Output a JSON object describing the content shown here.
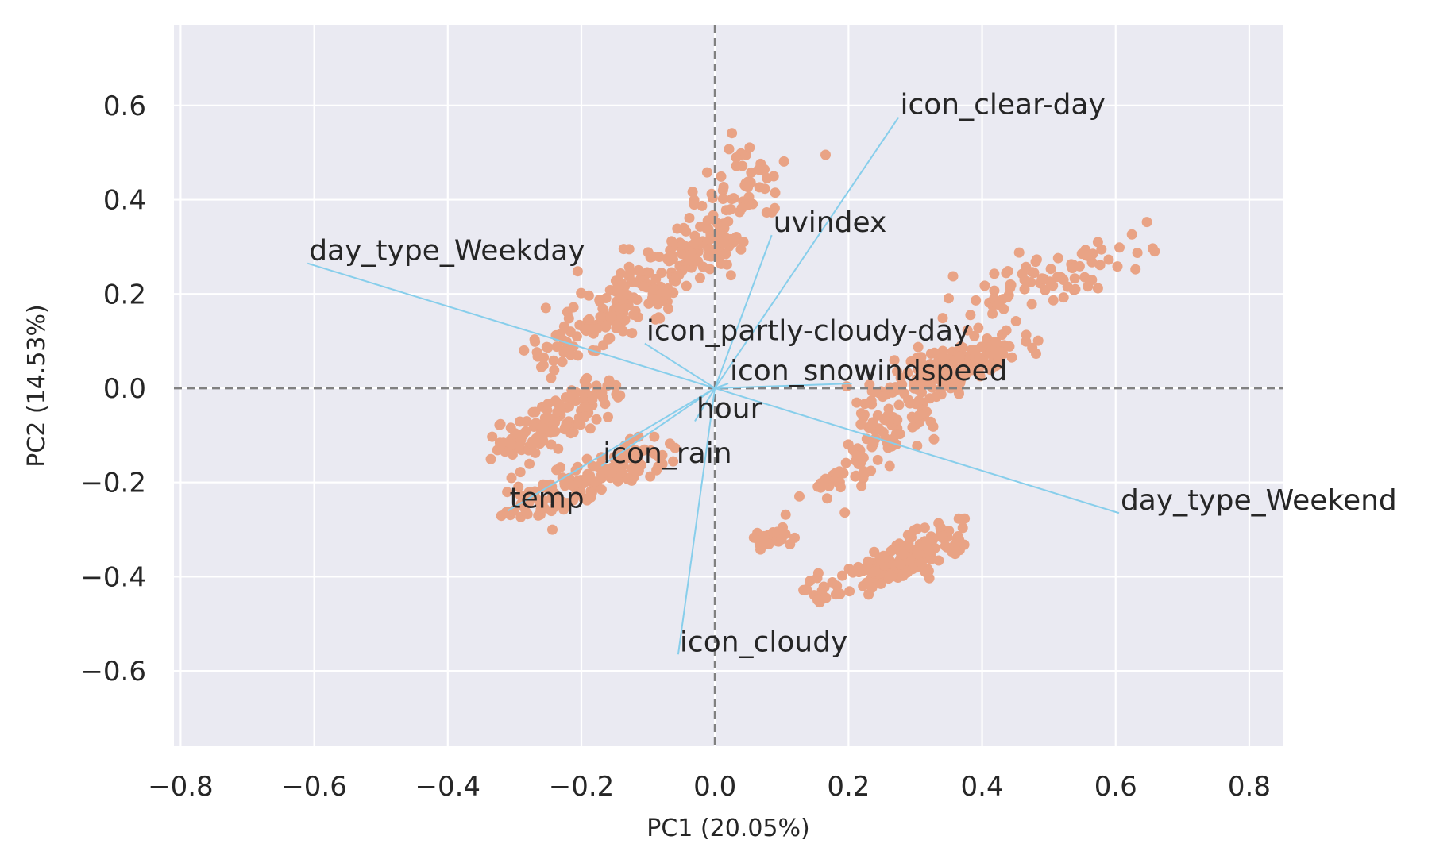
{
  "chart_data": {
    "type": "scatter",
    "title": "",
    "xlabel": "PC1 (20.05%)",
    "ylabel": "PC2 (14.53%)",
    "xlim": [
      -0.81,
      0.85
    ],
    "ylim": [
      -0.76,
      0.77
    ],
    "xticks": [
      -0.8,
      -0.6,
      -0.4,
      -0.2,
      0.0,
      0.2,
      0.4,
      0.6,
      0.8
    ],
    "yticks": [
      -0.6,
      -0.4,
      -0.2,
      0.0,
      0.2,
      0.4,
      0.6
    ],
    "xtick_labels": [
      "−0.8",
      "−0.6",
      "−0.4",
      "−0.2",
      "0.0",
      "0.2",
      "0.4",
      "0.6",
      "0.8"
    ],
    "ytick_labels": [
      "−0.6",
      "−0.4",
      "−0.2",
      "0.0",
      "0.2",
      "0.4",
      "0.6"
    ],
    "grid": true,
    "reference_lines": {
      "x": 0.0,
      "y": 0.0,
      "style": "dashed",
      "color": "#808080"
    },
    "colors": {
      "points": "#E9A385",
      "vectors": "#87CEEB",
      "background": "#EAEAF2",
      "grid": "#FFFFFF"
    },
    "point_clusters": [
      {
        "from": [
          -0.32,
          -0.14
        ],
        "to": [
          -0.16,
          -0.01
        ],
        "count": 130,
        "spread": 0.022
      },
      {
        "from": [
          -0.3,
          -0.27
        ],
        "to": [
          -0.09,
          -0.13
        ],
        "count": 150,
        "spread": 0.022
      },
      {
        "from": [
          -0.27,
          0.05
        ],
        "to": [
          -0.08,
          0.2
        ],
        "count": 80,
        "spread": 0.022
      },
      {
        "from": [
          -0.18,
          0.16
        ],
        "to": [
          0.02,
          0.33
        ],
        "count": 140,
        "spread": 0.025
      },
      {
        "from": [
          -0.03,
          0.3
        ],
        "to": [
          0.08,
          0.5
        ],
        "count": 80,
        "spread": 0.03
      },
      {
        "from": [
          0.22,
          -0.05
        ],
        "to": [
          0.38,
          0.05
        ],
        "count": 90,
        "spread": 0.025
      },
      {
        "from": [
          0.33,
          0.02
        ],
        "to": [
          0.45,
          0.1
        ],
        "count": 90,
        "spread": 0.022
      },
      {
        "from": [
          0.38,
          0.16
        ],
        "to": [
          0.62,
          0.3
        ],
        "count": 80,
        "spread": 0.03
      },
      {
        "from": [
          0.16,
          -0.22
        ],
        "to": [
          0.3,
          -0.06
        ],
        "count": 80,
        "spread": 0.022
      },
      {
        "from": [
          0.23,
          -0.4
        ],
        "to": [
          0.36,
          -0.31
        ],
        "count": 130,
        "spread": 0.02
      },
      {
        "from": [
          0.07,
          -0.33
        ],
        "to": [
          0.12,
          -0.3
        ],
        "count": 25,
        "spread": 0.015
      },
      {
        "from": [
          0.14,
          -0.44
        ],
        "to": [
          0.24,
          -0.38
        ],
        "count": 30,
        "spread": 0.015
      }
    ],
    "vectors": [
      {
        "name": "day_type_Weekday",
        "x": -0.61,
        "y": 0.265
      },
      {
        "name": "day_type_Weekend",
        "x": 0.605,
        "y": -0.265
      },
      {
        "name": "icon_clear-day",
        "x": 0.275,
        "y": 0.575
      },
      {
        "name": "uvindex",
        "x": 0.085,
        "y": 0.325
      },
      {
        "name": "icon_partly-cloudy-day",
        "x": -0.105,
        "y": 0.095
      },
      {
        "name": "icon_snow",
        "x": 0.02,
        "y": 0.01
      },
      {
        "name": "windspeed",
        "x": 0.205,
        "y": 0.01
      },
      {
        "name": "hour",
        "x": -0.03,
        "y": -0.07
      },
      {
        "name": "icon_rain",
        "x": -0.17,
        "y": -0.165
      },
      {
        "name": "temp",
        "x": -0.31,
        "y": -0.26
      },
      {
        "name": "icon_cloudy",
        "x": -0.055,
        "y": -0.565
      }
    ]
  }
}
